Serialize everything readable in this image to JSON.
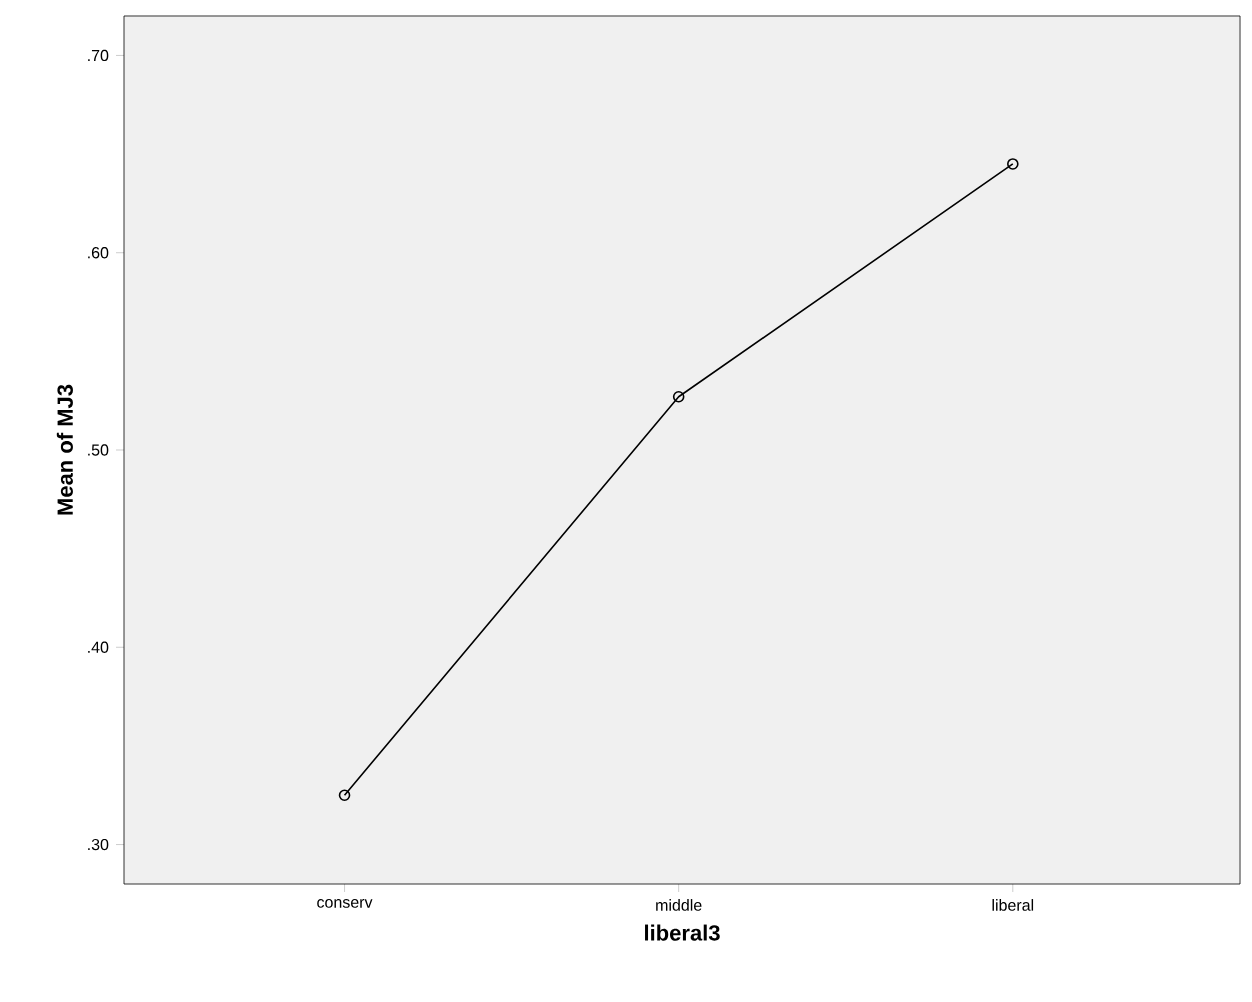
{
  "chart_data": {
    "type": "line",
    "xlabel": "liberal3",
    "ylabel": "Mean of MJ3",
    "categories": [
      "conserv",
      "middle",
      "liberal"
    ],
    "series": [
      {
        "color": "#000000",
        "values": [
          0.325,
          0.527,
          0.645
        ]
      }
    ],
    "ylim": [
      0.28,
      0.72
    ],
    "yticks": [
      {
        "value": 0.3,
        "label": ".30"
      },
      {
        "value": 0.4,
        "label": ".40"
      },
      {
        "value": 0.5,
        "label": ".50"
      },
      {
        "value": 0.6,
        "label": ".60"
      },
      {
        "value": 0.7,
        "label": ".70"
      }
    ],
    "grid": false,
    "marker": "circle",
    "line_style": "solid"
  }
}
